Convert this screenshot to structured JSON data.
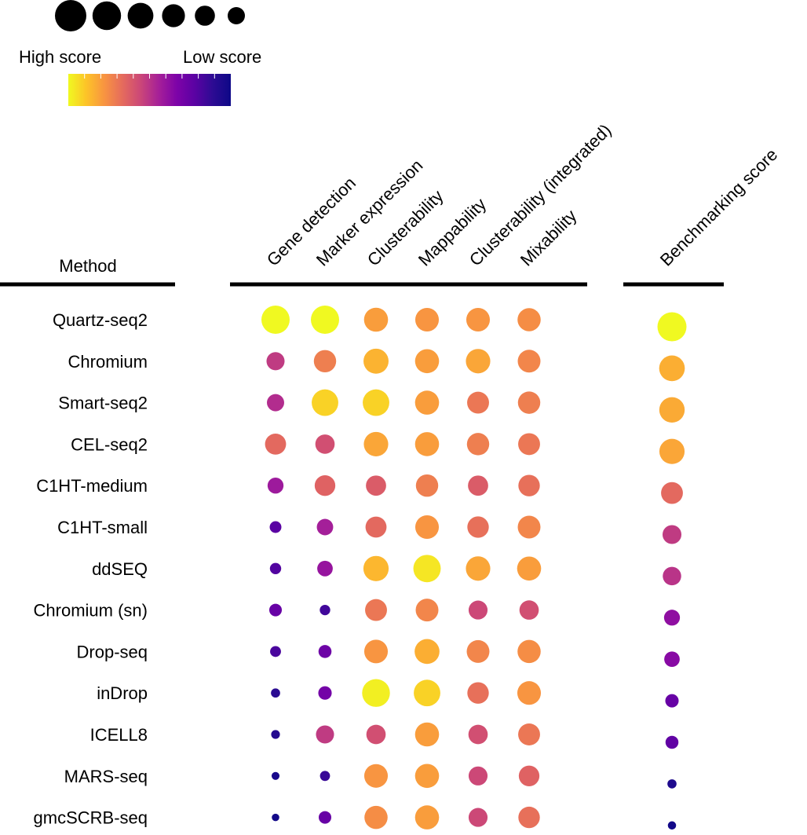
{
  "chart_data": {
    "type": "dot-matrix",
    "legend": {
      "high_label": "High score",
      "low_label": "Low score",
      "size_levels": [
        1.0,
        0.8,
        0.6,
        0.4,
        0.2,
        0.0
      ],
      "colormap": [
        "#f0f921",
        "#fdc328",
        "#f89441",
        "#e56b5d",
        "#cb4778",
        "#a62098",
        "#7e03a8",
        "#5b02a3",
        "#2d0b93",
        "#0d0887"
      ]
    },
    "row_header": "Method",
    "metric_columns": [
      "Gene detection",
      "Marker expression",
      "Clusterability",
      "Mappability",
      "Clusterability (integrated)",
      "Mixability"
    ],
    "score_column": "Benchmarking score",
    "rows": [
      {
        "method": "Quartz-seq2",
        "metrics": [
          1.0,
          1.0,
          0.8,
          0.78,
          0.78,
          0.76
        ],
        "benchmark": 1.0
      },
      {
        "method": "Chromium",
        "metrics": [
          0.52,
          0.72,
          0.85,
          0.8,
          0.82,
          0.74
        ],
        "benchmark": 0.84
      },
      {
        "method": "Smart-seq2",
        "metrics": [
          0.48,
          0.92,
          0.92,
          0.8,
          0.7,
          0.72
        ],
        "benchmark": 0.83
      },
      {
        "method": "CEL-seq2",
        "metrics": [
          0.66,
          0.58,
          0.82,
          0.8,
          0.72,
          0.7
        ],
        "benchmark": 0.82
      },
      {
        "method": "C1HT-medium",
        "metrics": [
          0.42,
          0.64,
          0.62,
          0.72,
          0.62,
          0.68
        ],
        "benchmark": 0.66
      },
      {
        "method": "C1HT-small",
        "metrics": [
          0.22,
          0.44,
          0.66,
          0.78,
          0.68,
          0.74
        ],
        "benchmark": 0.52
      },
      {
        "method": "ddSEQ",
        "metrics": [
          0.2,
          0.4,
          0.86,
          0.96,
          0.82,
          0.8
        ],
        "benchmark": 0.5
      },
      {
        "method": "Chromium (sn)",
        "metrics": [
          0.26,
          0.16,
          0.7,
          0.74,
          0.56,
          0.58
        ],
        "benchmark": 0.38
      },
      {
        "method": "Drop-seq",
        "metrics": [
          0.18,
          0.28,
          0.78,
          0.84,
          0.74,
          0.76
        ],
        "benchmark": 0.36
      },
      {
        "method": "inDrop",
        "metrics": [
          0.1,
          0.3,
          0.98,
          0.92,
          0.68,
          0.78
        ],
        "benchmark": 0.26
      },
      {
        "method": "ICELL8",
        "metrics": [
          0.08,
          0.52,
          0.58,
          0.8,
          0.58,
          0.7
        ],
        "benchmark": 0.24
      },
      {
        "method": "MARS-seq",
        "metrics": [
          0.04,
          0.14,
          0.78,
          0.8,
          0.56,
          0.64
        ],
        "benchmark": 0.06
      },
      {
        "method": "gmcSCRB-seq",
        "metrics": [
          0.02,
          0.26,
          0.76,
          0.8,
          0.56,
          0.68
        ],
        "benchmark": 0.02
      }
    ]
  }
}
